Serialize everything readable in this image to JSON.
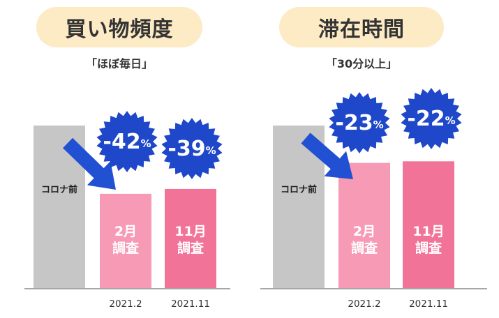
{
  "colors": {
    "baseline_bar": "#c6c6c6",
    "feb_bar": "#f79ab6",
    "nov_bar": "#f27398",
    "badge": "#1e47c9",
    "arrow": "#2150d3",
    "pill": "#fcebc5"
  },
  "chart_data": [
    {
      "type": "bar",
      "title": "買い物頻度",
      "subtitle": "「ほぼ毎日」",
      "categories": [
        "",
        "2021.2",
        "2021.11"
      ],
      "bar_labels": [
        "コロナ前",
        "2月\n調査",
        "11月\n調査"
      ],
      "values": [
        100,
        58,
        61
      ],
      "changes": [
        "-42%",
        "-39%"
      ],
      "ylim": [
        0,
        100
      ]
    },
    {
      "type": "bar",
      "title": "滞在時間",
      "subtitle": "「30分以上」",
      "categories": [
        "",
        "2021.2",
        "2021.11"
      ],
      "bar_labels": [
        "コロナ前",
        "2月\n調査",
        "11月\n調査"
      ],
      "values": [
        100,
        77,
        78
      ],
      "changes": [
        "-23%",
        "-22%"
      ],
      "ylim": [
        0,
        100
      ]
    }
  ]
}
